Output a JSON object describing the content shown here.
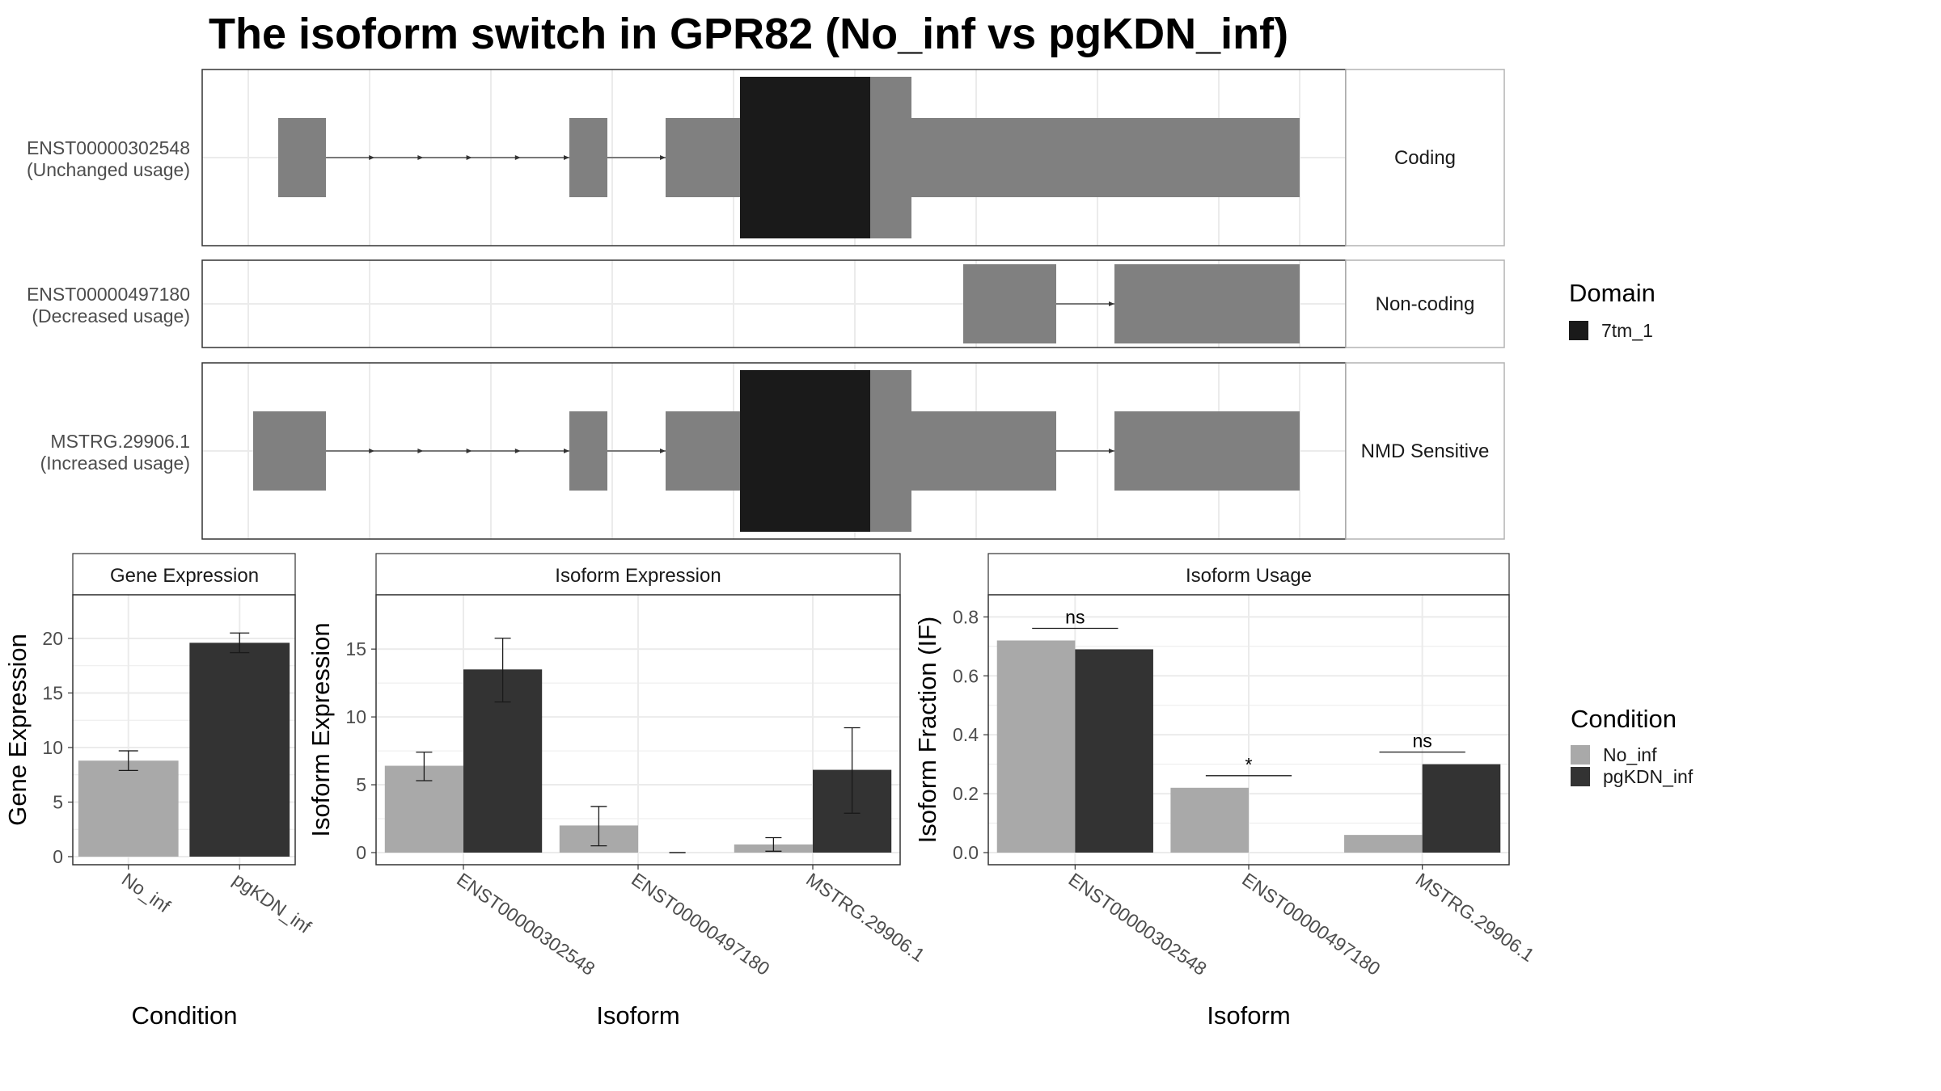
{
  "title": "The isoform switch in GPR82 (No_inf vs pgKDN_inf)",
  "colors": {
    "exon": "#808080",
    "domain": "#1a1a1a",
    "No_inf": "#a9a9a9",
    "pgKDN_inf": "#333333",
    "grid": "#ebebeb"
  },
  "transcripts": [
    {
      "id": "ENST00000302548",
      "usage": "(Unchanged usage)",
      "category": "Coding"
    },
    {
      "id": "ENST00000497180",
      "usage": "(Decreased usage)",
      "category": "Non-coding"
    },
    {
      "id": "MSTRG.29906.1",
      "usage": "(Increased usage)",
      "category": "NMD Sensitive"
    }
  ],
  "legend_domain": {
    "title": "Domain",
    "items": [
      {
        "label": "7tm_1",
        "color": "#1a1a1a"
      }
    ]
  },
  "legend_condition": {
    "title": "Condition",
    "items": [
      {
        "label": "No_inf",
        "color": "#a9a9a9"
      },
      {
        "label": "pgKDN_inf",
        "color": "#333333"
      }
    ]
  },
  "chart_data": [
    {
      "type": "bar",
      "title": "Gene Expression",
      "xlabel": "Condition",
      "ylabel": "Gene Expression",
      "categories": [
        "No_inf",
        "pgKDN_inf"
      ],
      "values": [
        8.8,
        19.6
      ],
      "error_low": [
        7.9,
        18.7
      ],
      "error_high": [
        9.7,
        20.5
      ],
      "ylim": [
        0,
        24
      ],
      "yticks": [
        0,
        5,
        10,
        15,
        20
      ]
    },
    {
      "type": "bar",
      "title": "Isoform Expression",
      "xlabel": "Isoform",
      "ylabel": "Isoform Expression",
      "categories": [
        "ENST00000302548",
        "ENST00000497180",
        "MSTRG.29906.1"
      ],
      "series": [
        {
          "name": "No_inf",
          "values": [
            6.4,
            2.0,
            0.6
          ],
          "error_low": [
            5.3,
            0.5,
            0.1
          ],
          "error_high": [
            7.4,
            3.4,
            1.1
          ]
        },
        {
          "name": "pgKDN_inf",
          "values": [
            13.5,
            0.0,
            6.1
          ],
          "error_low": [
            11.1,
            0.0,
            2.9
          ],
          "error_high": [
            15.8,
            0.0,
            9.2
          ]
        }
      ],
      "ylim": [
        0,
        19
      ],
      "yticks": [
        0,
        5,
        10,
        15
      ]
    },
    {
      "type": "bar",
      "title": "Isoform Usage",
      "xlabel": "Isoform",
      "ylabel": "Isoform Fraction (IF)",
      "categories": [
        "ENST00000302548",
        "ENST00000497180",
        "MSTRG.29906.1"
      ],
      "series": [
        {
          "name": "No_inf",
          "values": [
            0.72,
            0.22,
            0.06
          ]
        },
        {
          "name": "pgKDN_inf",
          "values": [
            0.69,
            0.0,
            0.3
          ]
        }
      ],
      "significance": [
        "ns",
        "*",
        "ns"
      ],
      "ylim": [
        0,
        0.875
      ],
      "yticks": [
        "0.0",
        "0.2",
        "0.4",
        "0.6",
        "0.8"
      ]
    }
  ]
}
